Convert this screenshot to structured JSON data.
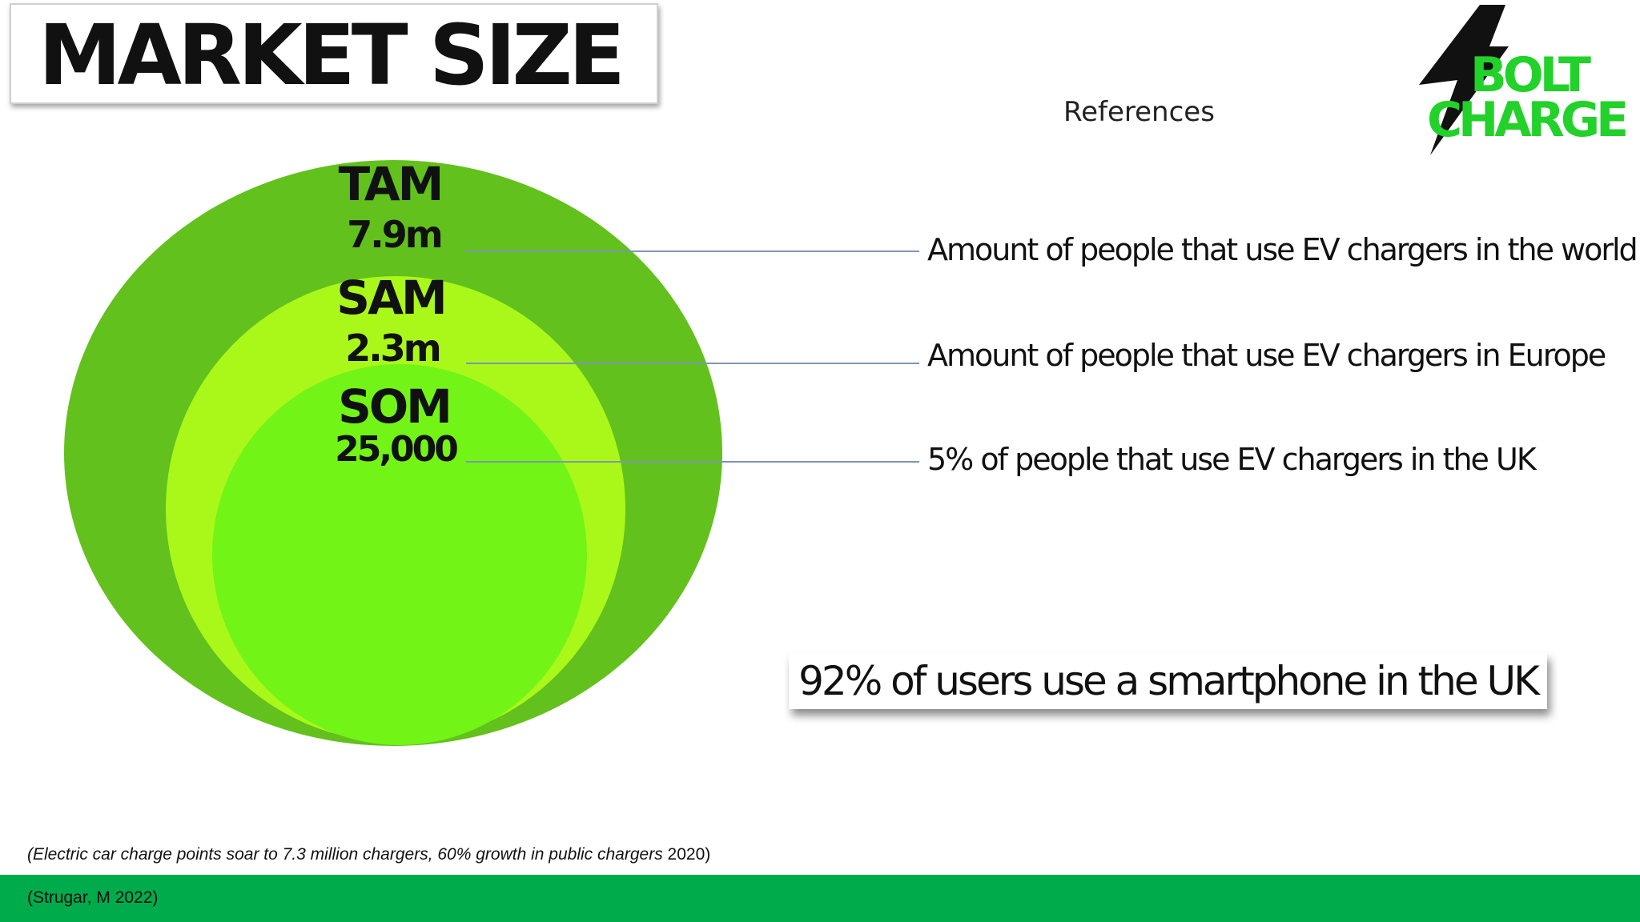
{
  "header": {
    "title": "MARKET SIZE",
    "references": "References"
  },
  "logo": {
    "line1": "BOLT",
    "line2": "CHARGE",
    "icon": "lightning-bolt-icon",
    "color": "#22d12a"
  },
  "colors": {
    "tam": "#62c11c",
    "sam": "#a9f81a",
    "som": "#72f416",
    "footer": "#00ab4c",
    "leader_line": "#7f95b2"
  },
  "markets": [
    {
      "key": "TAM",
      "value": "7.9m",
      "description": "Amount of people that use EV chargers in the world"
    },
    {
      "key": "SAM",
      "value": "2.3m",
      "description": "Amount of people that use EV chargers in Europe"
    },
    {
      "key": "SOM",
      "value": "25,000",
      "description": "5% of people that use EV chargers in the UK"
    }
  ],
  "callout": "92% of users use a smartphone in the UK",
  "citation": {
    "italic": "(Electric car charge points soar to 7.3 million chargers, 60% growth in public chargers",
    "rest": " 2020)"
  },
  "footer": {
    "text": "(Strugar, M 2022)"
  }
}
